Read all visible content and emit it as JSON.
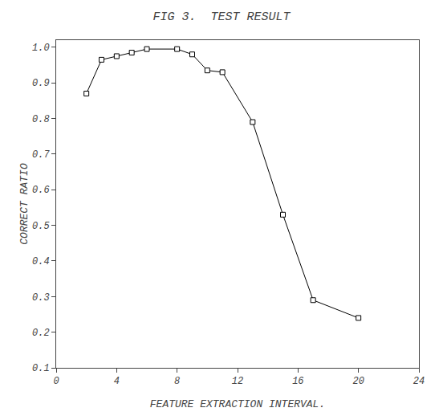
{
  "chart_data": {
    "type": "line",
    "title": "FIG 3.  TEST RESULT",
    "xlabel": "FEATURE EXTRACTION INTERVAL.",
    "ylabel": "CORRECT RATIO",
    "x": [
      2,
      3,
      4,
      5,
      6,
      8,
      9,
      10,
      11,
      13,
      15,
      17,
      20
    ],
    "values": [
      0.87,
      0.965,
      0.975,
      0.985,
      0.995,
      0.995,
      0.98,
      0.935,
      0.93,
      0.79,
      0.53,
      0.29,
      0.24
    ],
    "color": "#000000",
    "marker": "square",
    "xlim": [
      0,
      24
    ],
    "ylim": [
      0.1,
      1.02
    ],
    "xticks": [
      0,
      4,
      8,
      12,
      16,
      20,
      24
    ],
    "yticks": [
      0.1,
      0.2,
      0.3,
      0.4,
      0.5,
      0.6,
      0.7,
      0.8,
      0.9,
      {
        "value": 1,
        "label": "1.0"
      }
    ],
    "grid": false
  }
}
